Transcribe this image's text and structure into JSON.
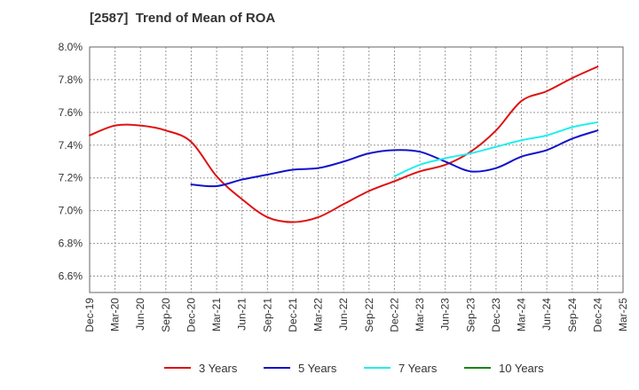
{
  "chart_data": {
    "type": "line",
    "title": "[2587]  Trend of Mean of ROA",
    "xlabel": "",
    "ylabel": "",
    "ylim": [
      6.5,
      8.0
    ],
    "y_ticks": [
      6.6,
      6.8,
      7.0,
      7.2,
      7.4,
      7.6,
      7.8,
      8.0
    ],
    "y_tick_labels": [
      "6.6%",
      "6.8%",
      "7.0%",
      "7.2%",
      "7.4%",
      "7.6%",
      "7.8%",
      "8.0%"
    ],
    "categories": [
      "Dec-19",
      "Mar-20",
      "Jun-20",
      "Sep-20",
      "Dec-20",
      "Mar-21",
      "Jun-21",
      "Sep-21",
      "Dec-21",
      "Mar-22",
      "Jun-22",
      "Sep-22",
      "Dec-22",
      "Mar-23",
      "Jun-23",
      "Sep-23",
      "Dec-23",
      "Mar-24",
      "Jun-24",
      "Sep-24",
      "Dec-24",
      "Mar-25"
    ],
    "grid": true,
    "legend_position": "bottom",
    "series": [
      {
        "name": "3 Years",
        "color": "#dd1111",
        "values": [
          7.46,
          7.52,
          7.52,
          7.49,
          7.42,
          7.21,
          7.07,
          6.96,
          6.93,
          6.96,
          7.04,
          7.12,
          7.18,
          7.24,
          7.28,
          7.36,
          7.49,
          7.67,
          7.73,
          7.81,
          7.88,
          null
        ]
      },
      {
        "name": "5 Years",
        "color": "#1111cc",
        "values": [
          null,
          null,
          null,
          null,
          7.16,
          7.15,
          7.19,
          7.22,
          7.25,
          7.26,
          7.3,
          7.35,
          7.37,
          7.36,
          7.3,
          7.24,
          7.26,
          7.33,
          7.37,
          7.44,
          7.49,
          null
        ]
      },
      {
        "name": "7 Years",
        "color": "#22eeee",
        "values": [
          null,
          null,
          null,
          null,
          null,
          null,
          null,
          null,
          null,
          null,
          null,
          null,
          7.21,
          7.28,
          7.32,
          7.35,
          7.39,
          7.43,
          7.46,
          7.51,
          7.54,
          null
        ]
      },
      {
        "name": "10 Years",
        "color": "#118811",
        "values": [
          null,
          null,
          null,
          null,
          null,
          null,
          null,
          null,
          null,
          null,
          null,
          null,
          null,
          null,
          null,
          null,
          null,
          null,
          null,
          null,
          null,
          null
        ]
      }
    ]
  }
}
